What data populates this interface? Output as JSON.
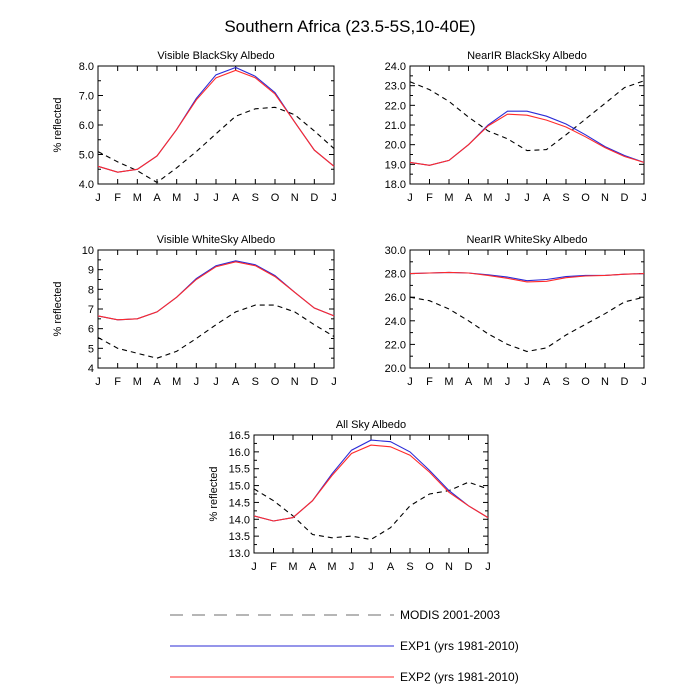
{
  "title": "Southern Africa (23.5-5S,10-40E)",
  "colors": {
    "modis": "#000000",
    "exp1": "#2b2bd6",
    "exp2": "#ff2a2a",
    "legend_dash": "#8a8a8a"
  },
  "legend": {
    "position": "bottom",
    "entries": [
      {
        "key": "modis",
        "label": "MODIS 2001-2003",
        "style": "dashed"
      },
      {
        "key": "exp1",
        "label": "EXP1 (yrs 1981-2010)",
        "style": "solid"
      },
      {
        "key": "exp2",
        "label": "EXP2 (yrs 1981-2010)",
        "style": "solid"
      }
    ]
  },
  "chart_data": [
    {
      "type": "line",
      "title": "Visible BlackSky Albedo",
      "ylabel": "% reflected",
      "xlabel": "",
      "categories": [
        "J",
        "F",
        "M",
        "A",
        "M",
        "J",
        "J",
        "A",
        "S",
        "O",
        "N",
        "D",
        "J"
      ],
      "ylim": [
        4.0,
        8.0
      ],
      "yticks": [
        "4.0",
        "5.0",
        "6.0",
        "7.0",
        "8.0"
      ],
      "series": [
        {
          "key": "modis",
          "name": "MODIS 2001-2003",
          "values": [
            5.1,
            4.75,
            4.45,
            4.05,
            4.55,
            5.1,
            5.7,
            6.3,
            6.55,
            6.6,
            6.35,
            5.8,
            5.2
          ]
        },
        {
          "key": "exp1",
          "name": "EXP1 (yrs 1981-2010)",
          "values": [
            4.6,
            4.4,
            4.5,
            4.95,
            5.85,
            6.9,
            7.7,
            7.95,
            7.65,
            7.1,
            6.1,
            5.15,
            4.6
          ]
        },
        {
          "key": "exp2",
          "name": "EXP2 (yrs 1981-2010)",
          "values": [
            4.6,
            4.4,
            4.5,
            4.95,
            5.85,
            6.85,
            7.6,
            7.85,
            7.6,
            7.05,
            6.1,
            5.15,
            4.6
          ]
        }
      ]
    },
    {
      "type": "line",
      "title": "NearIR BlackSky Albedo",
      "ylabel": "",
      "xlabel": "",
      "categories": [
        "J",
        "F",
        "M",
        "A",
        "M",
        "J",
        "J",
        "A",
        "S",
        "O",
        "N",
        "D",
        "J"
      ],
      "ylim": [
        18.0,
        24.0
      ],
      "yticks": [
        "18.0",
        "19.0",
        "20.0",
        "21.0",
        "22.0",
        "23.0",
        "24.0"
      ],
      "series": [
        {
          "key": "modis",
          "name": "MODIS 2001-2003",
          "values": [
            23.2,
            22.8,
            22.2,
            21.4,
            20.7,
            20.3,
            19.7,
            19.75,
            20.5,
            21.3,
            22.1,
            22.9,
            23.25
          ]
        },
        {
          "key": "exp1",
          "name": "EXP1 (yrs 1981-2010)",
          "values": [
            19.1,
            18.95,
            19.2,
            20.0,
            21.0,
            21.7,
            21.7,
            21.45,
            21.05,
            20.5,
            19.9,
            19.45,
            19.1
          ]
        },
        {
          "key": "exp2",
          "name": "EXP2 (yrs 1981-2010)",
          "values": [
            19.1,
            18.95,
            19.2,
            20.0,
            20.95,
            21.55,
            21.5,
            21.25,
            20.9,
            20.4,
            19.85,
            19.4,
            19.1
          ]
        }
      ]
    },
    {
      "type": "line",
      "title": "Visible WhiteSky Albedo",
      "ylabel": "% reflected",
      "xlabel": "",
      "categories": [
        "J",
        "F",
        "M",
        "A",
        "M",
        "J",
        "J",
        "A",
        "S",
        "O",
        "N",
        "D",
        "J"
      ],
      "ylim": [
        4,
        10
      ],
      "yticks": [
        "4",
        "5",
        "6",
        "7",
        "8",
        "9",
        "10"
      ],
      "series": [
        {
          "key": "modis",
          "name": "MODIS 2001-2003",
          "values": [
            5.55,
            5.0,
            4.75,
            4.5,
            4.85,
            5.5,
            6.2,
            6.85,
            7.2,
            7.2,
            6.85,
            6.2,
            5.6
          ]
        },
        {
          "key": "exp1",
          "name": "EXP1 (yrs 1981-2010)",
          "values": [
            6.65,
            6.45,
            6.5,
            6.85,
            7.6,
            8.55,
            9.2,
            9.45,
            9.25,
            8.7,
            7.85,
            7.05,
            6.65
          ]
        },
        {
          "key": "exp2",
          "name": "EXP2 (yrs 1981-2010)",
          "values": [
            6.65,
            6.45,
            6.5,
            6.85,
            7.6,
            8.5,
            9.15,
            9.4,
            9.2,
            8.65,
            7.85,
            7.05,
            6.65
          ]
        }
      ]
    },
    {
      "type": "line",
      "title": "NearIR WhiteSky Albedo",
      "ylabel": "",
      "xlabel": "",
      "categories": [
        "J",
        "F",
        "M",
        "A",
        "M",
        "J",
        "J",
        "A",
        "S",
        "O",
        "N",
        "D",
        "J"
      ],
      "ylim": [
        20.0,
        30.0
      ],
      "yticks": [
        "20.0",
        "22.0",
        "24.0",
        "26.0",
        "28.0",
        "30.0"
      ],
      "series": [
        {
          "key": "modis",
          "name": "MODIS 2001-2003",
          "values": [
            26.0,
            25.7,
            25.0,
            24.0,
            22.9,
            22.0,
            21.4,
            21.7,
            22.8,
            23.7,
            24.6,
            25.6,
            26.0
          ]
        },
        {
          "key": "exp1",
          "name": "EXP1 (yrs 1981-2010)",
          "values": [
            28.0,
            28.05,
            28.1,
            28.05,
            27.9,
            27.7,
            27.4,
            27.5,
            27.75,
            27.85,
            27.85,
            27.95,
            28.0
          ]
        },
        {
          "key": "exp2",
          "name": "EXP2 (yrs 1981-2010)",
          "values": [
            28.0,
            28.05,
            28.1,
            28.05,
            27.85,
            27.6,
            27.3,
            27.35,
            27.65,
            27.8,
            27.85,
            27.95,
            28.0
          ]
        }
      ]
    },
    {
      "type": "line",
      "title": "All Sky Albedo",
      "ylabel": "% reflected",
      "xlabel": "",
      "categories": [
        "J",
        "F",
        "M",
        "A",
        "M",
        "J",
        "J",
        "A",
        "S",
        "O",
        "N",
        "D",
        "J"
      ],
      "ylim": [
        13.0,
        16.5
      ],
      "yticks": [
        "13.0",
        "13.5",
        "14.0",
        "14.5",
        "15.0",
        "15.5",
        "16.0",
        "16.5"
      ],
      "series": [
        {
          "key": "modis",
          "name": "MODIS 2001-2003",
          "values": [
            14.9,
            14.55,
            14.1,
            13.55,
            13.45,
            13.5,
            13.4,
            13.75,
            14.4,
            14.75,
            14.85,
            15.1,
            14.9
          ]
        },
        {
          "key": "exp1",
          "name": "EXP1 (yrs 1981-2010)",
          "values": [
            14.1,
            13.95,
            14.05,
            14.55,
            15.35,
            16.05,
            16.35,
            16.3,
            16.0,
            15.45,
            14.85,
            14.4,
            14.05
          ]
        },
        {
          "key": "exp2",
          "name": "EXP2 (yrs 1981-2010)",
          "values": [
            14.1,
            13.95,
            14.05,
            14.55,
            15.3,
            15.95,
            16.2,
            16.15,
            15.9,
            15.4,
            14.8,
            14.4,
            14.05
          ]
        }
      ]
    }
  ]
}
